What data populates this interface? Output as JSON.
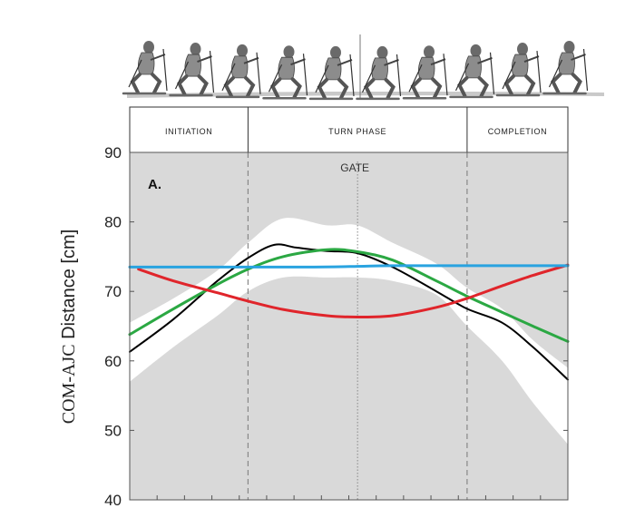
{
  "chart_data": {
    "type": "line",
    "panel_label": "A.",
    "ylabel_part1": "COM-AJC",
    "ylabel_part2": " Distance [cm]",
    "ylim": [
      40,
      90
    ],
    "yticks": [
      40,
      50,
      60,
      70,
      80,
      90
    ],
    "xlim": [
      0,
      100
    ],
    "grid": false,
    "phases": [
      {
        "label": "INITIATION",
        "start": 0,
        "end": 27
      },
      {
        "label": "TURN PHASE",
        "start": 27,
        "end": 77
      },
      {
        "label": "COMPLETION",
        "start": 77,
        "end": 100
      }
    ],
    "gate": {
      "label": "GATE",
      "x": 52
    },
    "band": {
      "x": [
        0,
        10,
        20,
        27,
        35,
        45,
        52,
        60,
        70,
        77,
        85,
        92,
        100
      ],
      "upper": [
        65.5,
        69,
        73,
        77,
        80.5,
        79.5,
        79.5,
        77,
        74,
        70.5,
        67.5,
        63,
        59
      ],
      "lower": [
        57,
        62,
        66.5,
        70,
        72,
        72,
        72,
        71.5,
        69.5,
        65,
        60,
        54,
        48
      ]
    },
    "series": [
      {
        "color": "#000000",
        "x": [
          0,
          10,
          20,
          27,
          33,
          38,
          45,
          52,
          60,
          70,
          77,
          85,
          92,
          100
        ],
        "y": [
          61.3,
          66,
          71.5,
          74.8,
          76.7,
          76.3,
          75.8,
          75.5,
          73.5,
          70,
          67.5,
          65.5,
          62,
          57.3
        ]
      },
      {
        "color": "#2ba843",
        "x": [
          0,
          10,
          20,
          27,
          35,
          45,
          52,
          60,
          70,
          77,
          85,
          92,
          100
        ],
        "y": [
          63.8,
          67.5,
          71,
          73.2,
          75,
          76,
          75.7,
          74.5,
          71.5,
          69.3,
          67,
          65,
          62.8
        ]
      },
      {
        "color": "#e0252b",
        "x": [
          2,
          10,
          20,
          27,
          35,
          45,
          52,
          60,
          70,
          77,
          85,
          92,
          100
        ],
        "y": [
          73.2,
          71.5,
          69.8,
          68.6,
          67.4,
          66.5,
          66.3,
          66.5,
          67.7,
          69,
          70.8,
          72.3,
          73.8
        ]
      },
      {
        "color": "#29a3e0",
        "x": [
          0,
          20,
          40,
          52,
          60,
          80,
          100
        ],
        "y": [
          73.5,
          73.5,
          73.5,
          73.6,
          73.7,
          73.7,
          73.7
        ]
      }
    ]
  }
}
